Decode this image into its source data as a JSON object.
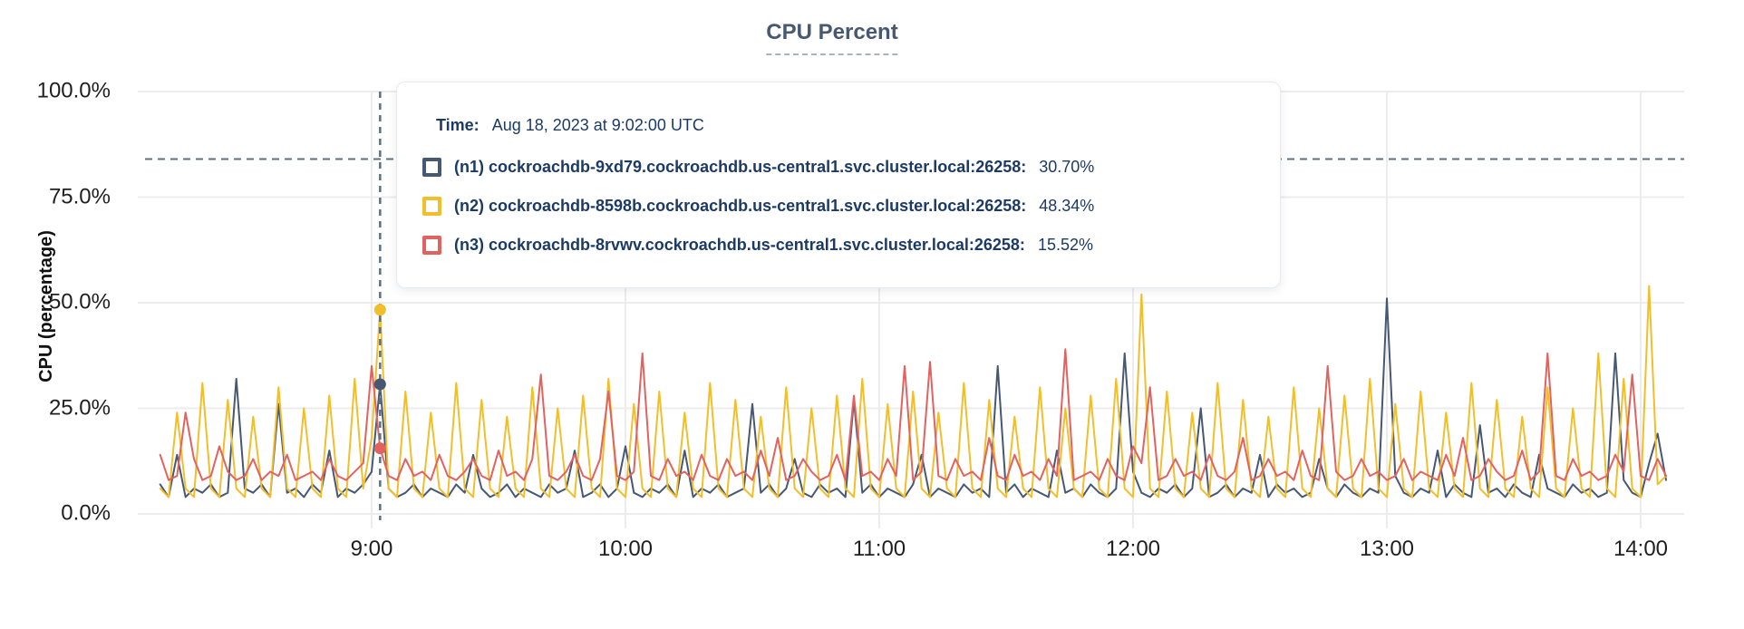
{
  "title": {
    "text": "CPU Percent"
  },
  "tooltip": {
    "time_label": "Time:",
    "time_value": "Aug 18, 2023 at 9:02:00 UTC",
    "rows": [
      {
        "node": "n1",
        "label": "(n1) cockroachdb-9xd79.cockroachdb.us-central1.svc.cluster.local:26258:",
        "value": "30.70%",
        "color": "#475872"
      },
      {
        "node": "n2",
        "label": "(n2) cockroachdb-8598b.cockroachdb.us-central1.svc.cluster.local:26258:",
        "value": "48.34%",
        "color": "#F2BE2C"
      },
      {
        "node": "n3",
        "label": "(n3) cockroachdb-8rvwv.cockroachdb.us-central1.svc.cluster.local:26258:",
        "value": "15.52%",
        "color": "#E2625F"
      }
    ]
  },
  "chart_data": {
    "type": "line",
    "title": "CPU Percent",
    "xlabel": "",
    "ylabel": "CPU (percentage)",
    "ylim": [
      0,
      100
    ],
    "grid": true,
    "grid_color": "#ECECEC",
    "dash_color": "#5C7080",
    "threshold_pct": 84,
    "yticks": [
      {
        "pct": 0,
        "label": "0.0%"
      },
      {
        "pct": 25,
        "label": "25.0%"
      },
      {
        "pct": 50,
        "label": "50.0%"
      },
      {
        "pct": 75,
        "label": "75.0%"
      },
      {
        "pct": 100,
        "label": "100.0%"
      }
    ],
    "xticks": [
      {
        "hour": 9,
        "label": "9:00"
      },
      {
        "hour": 10,
        "label": "10:00"
      },
      {
        "hour": 11,
        "label": "11:00"
      },
      {
        "hour": 12,
        "label": "12:00"
      },
      {
        "hour": 13,
        "label": "13:00"
      },
      {
        "hour": 14,
        "label": "14:00"
      }
    ],
    "x_start_minutes_after_0800": 10,
    "x_step_minutes": 2,
    "hover": {
      "index": 26,
      "time": "9:02:00 UTC",
      "values": {
        "n1": 30.7,
        "n2": 48.34,
        "n3": 15.52
      }
    },
    "series": [
      {
        "name": "n1",
        "color": "#475872",
        "values": [
          7,
          4,
          14,
          4,
          6,
          5,
          7,
          4,
          5,
          32,
          6,
          5,
          7,
          4,
          26,
          5,
          6,
          4,
          7,
          5,
          15,
          4,
          6,
          5,
          7,
          10,
          30.7,
          6,
          4,
          5,
          7,
          4,
          6,
          5,
          4,
          7,
          5,
          14,
          6,
          4,
          5,
          7,
          4,
          6,
          5,
          4,
          7,
          5,
          6,
          15,
          4,
          5,
          7,
          4,
          6,
          16,
          5,
          4,
          6,
          5,
          7,
          4,
          15,
          4,
          6,
          5,
          7,
          4,
          5,
          6,
          26,
          5,
          7,
          4,
          6,
          13,
          5,
          4,
          7,
          5,
          6,
          4,
          27,
          5,
          7,
          4,
          6,
          5,
          4,
          7,
          14,
          4,
          6,
          5,
          4,
          7,
          5,
          6,
          4,
          35,
          5,
          7,
          4,
          6,
          5,
          4,
          15,
          5,
          6,
          4,
          7,
          5,
          4,
          6,
          38,
          10,
          5,
          4,
          6,
          5,
          7,
          4,
          6,
          25,
          4,
          5,
          7,
          4,
          6,
          5,
          14,
          4,
          7,
          5,
          6,
          4,
          5,
          13,
          6,
          4,
          7,
          5,
          4,
          6,
          5,
          51,
          9,
          5,
          4,
          6,
          5,
          15,
          4,
          7,
          5,
          4,
          21,
          5,
          6,
          4,
          7,
          5,
          4,
          14,
          6,
          5,
          4,
          7,
          5,
          6,
          4,
          5,
          38,
          8,
          5,
          4,
          12,
          19,
          8
        ]
      },
      {
        "name": "n2",
        "color": "#F2BE2C",
        "values": [
          6,
          4,
          24,
          6,
          4,
          31,
          6,
          4,
          27,
          6,
          4,
          23,
          6,
          4,
          30,
          6,
          4,
          25,
          6,
          4,
          28,
          6,
          4,
          32,
          6,
          18,
          48.34,
          6,
          4,
          29,
          6,
          4,
          24,
          6,
          4,
          31,
          6,
          4,
          27,
          6,
          4,
          23,
          6,
          4,
          30,
          6,
          4,
          25,
          6,
          4,
          28,
          6,
          4,
          32,
          6,
          4,
          26,
          6,
          4,
          29,
          6,
          4,
          24,
          6,
          4,
          31,
          6,
          4,
          27,
          6,
          4,
          23,
          6,
          4,
          30,
          6,
          4,
          25,
          6,
          4,
          28,
          6,
          4,
          32,
          6,
          4,
          26,
          6,
          4,
          29,
          6,
          4,
          24,
          6,
          4,
          31,
          6,
          4,
          27,
          6,
          4,
          23,
          6,
          4,
          30,
          6,
          4,
          25,
          6,
          4,
          28,
          6,
          4,
          32,
          6,
          4,
          52,
          6,
          4,
          29,
          6,
          4,
          24,
          6,
          4,
          31,
          6,
          4,
          27,
          6,
          4,
          23,
          6,
          4,
          30,
          6,
          4,
          25,
          6,
          4,
          28,
          6,
          4,
          32,
          6,
          4,
          26,
          6,
          4,
          29,
          6,
          4,
          24,
          6,
          4,
          31,
          6,
          4,
          27,
          6,
          4,
          23,
          6,
          4,
          30,
          6,
          4,
          25,
          6,
          4,
          38,
          6,
          4,
          32,
          6,
          4,
          54,
          7,
          9
        ]
      },
      {
        "name": "n3",
        "color": "#E2625F",
        "values": [
          14,
          8,
          9,
          24,
          13,
          8,
          9,
          16,
          10,
          8,
          9,
          13,
          8,
          10,
          9,
          14,
          8,
          9,
          10,
          8,
          13,
          9,
          8,
          10,
          12,
          35,
          15.52,
          9,
          8,
          13,
          9,
          10,
          8,
          14,
          9,
          8,
          10,
          13,
          9,
          8,
          15,
          9,
          10,
          8,
          13,
          33,
          9,
          8,
          10,
          14,
          9,
          8,
          13,
          29,
          9,
          8,
          10,
          38,
          9,
          8,
          13,
          9,
          10,
          8,
          14,
          9,
          8,
          13,
          9,
          10,
          8,
          15,
          9,
          18,
          8,
          9,
          13,
          10,
          8,
          9,
          14,
          8,
          28,
          9,
          10,
          8,
          13,
          9,
          35,
          8,
          10,
          36,
          9,
          8,
          13,
          9,
          10,
          8,
          18,
          9,
          8,
          14,
          9,
          10,
          8,
          13,
          9,
          39,
          8,
          9,
          10,
          8,
          13,
          9,
          8,
          16,
          12,
          30,
          8,
          9,
          13,
          9,
          10,
          8,
          14,
          9,
          8,
          10,
          18,
          8,
          9,
          13,
          9,
          10,
          8,
          15,
          9,
          8,
          35,
          10,
          8,
          9,
          13,
          9,
          10,
          8,
          9,
          13,
          8,
          10,
          9,
          8,
          14,
          9,
          18,
          8,
          9,
          13,
          10,
          8,
          9,
          15,
          8,
          10,
          38,
          9,
          8,
          13,
          9,
          10,
          8,
          9,
          14,
          10,
          33,
          9,
          8,
          13,
          9
        ]
      }
    ]
  }
}
